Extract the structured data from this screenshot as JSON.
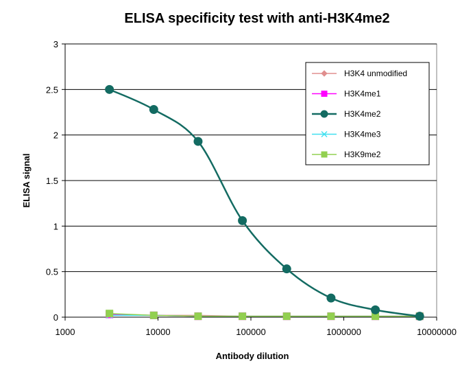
{
  "chart_data": {
    "type": "line",
    "title": "ELISA specificity test with anti-H3K4me2",
    "xlabel": "Antibody  dilution",
    "ylabel": "ELISA  signal",
    "x_scale": "log",
    "xlim": [
      1000,
      10000000
    ],
    "ylim": [
      0,
      3
    ],
    "x_ticks": [
      1000,
      10000,
      100000,
      1000000,
      10000000
    ],
    "x_tick_labels": [
      "1000",
      "10000",
      "100000",
      "1000000",
      "10000000"
    ],
    "y_ticks": [
      0,
      0.5,
      1,
      1.5,
      2,
      2.5,
      3
    ],
    "y_tick_labels": [
      "0",
      "0.5",
      "1",
      "1.5",
      "2",
      "2.5",
      "3"
    ],
    "grid": "horizontal major gridlines",
    "legend_position": "top-right",
    "x": [
      3000,
      9000,
      27000,
      81000,
      243000,
      729000,
      2187000,
      6561000
    ],
    "series": [
      {
        "name": "H3K4 unmodified",
        "values": [
          0.03,
          0.02,
          0.02,
          0.01,
          0.01,
          0.01,
          0.01,
          0.01
        ],
        "color": "#e08f8f",
        "marker": "diamond",
        "smooth": false
      },
      {
        "name": "H3K4me1",
        "values": [
          0.03,
          0.02,
          0.01,
          0.01,
          0.01,
          0.01,
          0.01,
          0.01
        ],
        "color": "#ff00ff",
        "marker": "square",
        "smooth": false
      },
      {
        "name": "H3K4me2",
        "values": [
          2.5,
          2.28,
          1.93,
          1.06,
          0.53,
          0.21,
          0.08,
          0.01
        ],
        "color": "#136b62",
        "marker": "circle",
        "smooth": true
      },
      {
        "name": "H3K4me3",
        "values": [
          0.02,
          0.02,
          0.01,
          0.01,
          0.01,
          0.01,
          0.01,
          0.01
        ],
        "color": "#40e0f0",
        "marker": "x",
        "smooth": false
      },
      {
        "name": "H3K9me2",
        "values": [
          0.04,
          0.02,
          0.01,
          0.01,
          0.01,
          0.01,
          0.01,
          0.01
        ],
        "color": "#92d050",
        "marker": "square",
        "smooth": false
      }
    ]
  }
}
